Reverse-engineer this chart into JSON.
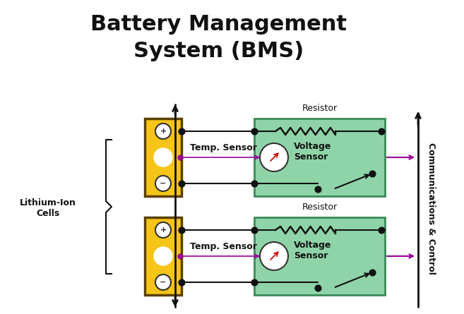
{
  "title_line1": "Battery Management",
  "title_line2": "System (BMS)",
  "title_fontsize": 22,
  "title_fontweight": "bold",
  "bg_color": "#ffffff",
  "cell_color": "#F5C518",
  "cell_border_color": "#5a4000",
  "sensor_box_color": "#8FD4A8",
  "sensor_box_border": "#3a8a5a",
  "line_color": "#111111",
  "arrow_color": "#990099",
  "resistor_color": "#111111",
  "label_color": "#111111",
  "lithium_label": "Lithium-Ion\nCells",
  "temp_sensor_label": "Temp. Sensor",
  "voltage_sensor_label": "Voltage\nSensor",
  "resistor_label": "Resistor",
  "comm_label": "Communications & Control"
}
